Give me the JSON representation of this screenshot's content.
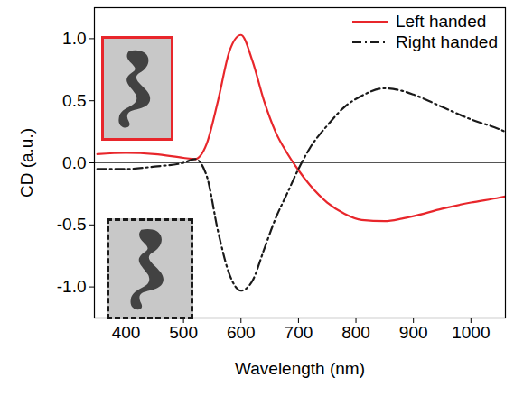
{
  "chart_data": {
    "type": "line",
    "xlabel": "Wavelength (nm)",
    "ylabel": "CD (a.u.)",
    "x": [
      350,
      400,
      450,
      500,
      520,
      540,
      560,
      580,
      600,
      620,
      640,
      660,
      680,
      700,
      720,
      750,
      780,
      810,
      850,
      880,
      900,
      950,
      1000,
      1050,
      1060
    ],
    "series": [
      {
        "name": "Left handed",
        "color": "#e8262b",
        "line_style": "solid",
        "values": [
          0.07,
          0.08,
          0.07,
          0.04,
          0.03,
          0.15,
          0.5,
          0.9,
          1.03,
          0.82,
          0.5,
          0.25,
          0.08,
          -0.06,
          -0.18,
          -0.32,
          -0.41,
          -0.46,
          -0.47,
          -0.45,
          -0.43,
          -0.37,
          -0.32,
          -0.28,
          -0.27
        ]
      },
      {
        "name": "Right handed",
        "color": "#1a1a1a",
        "line_style": "dashdot",
        "values": [
          -0.05,
          -0.05,
          -0.03,
          0.0,
          0.03,
          -0.1,
          -0.55,
          -0.9,
          -1.03,
          -0.95,
          -0.7,
          -0.45,
          -0.25,
          -0.05,
          0.12,
          0.3,
          0.45,
          0.54,
          0.6,
          0.58,
          0.55,
          0.45,
          0.35,
          0.27,
          0.25
        ]
      }
    ],
    "xlim": [
      345,
      1060
    ],
    "xticks": [
      400,
      500,
      600,
      700,
      800,
      900,
      1000
    ],
    "ylim": [
      -1.25,
      1.25
    ],
    "yticks": [
      {
        "value": -1,
        "label": "-1.0"
      },
      -0.5,
      {
        "value": 0,
        "label": "0.0"
      },
      0.5,
      {
        "value": 1,
        "label": "1.0"
      }
    ],
    "grid": false,
    "legend": "top-right"
  }
}
